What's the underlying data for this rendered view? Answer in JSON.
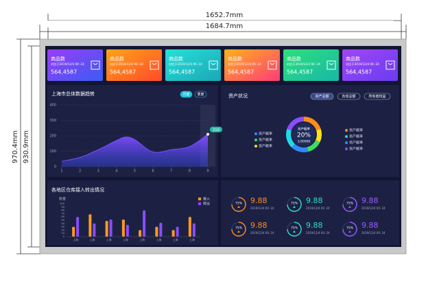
{
  "dimensions": {
    "width_inner": "1652.7mm",
    "width_outer": "1684.7mm",
    "height_outer": "970.4mm",
    "height_inner": "930.9mm"
  },
  "cards": [
    {
      "title": "商品数",
      "subtitle": "对比于2019/12/4 00: 24",
      "value": "564,4587"
    },
    {
      "title": "商品数",
      "subtitle": "对比于2019/12/4 00: 24",
      "value": "564,4587"
    },
    {
      "title": "商品数",
      "subtitle": "对比于2019/12/4 00: 24",
      "value": "564,4587"
    },
    {
      "title": "商品数",
      "subtitle": "对比于2019/12/4 00: 24",
      "value": "564,4587"
    },
    {
      "title": "商品数",
      "subtitle": "对比于2019/12/4 00: 24",
      "value": "564,4587"
    },
    {
      "title": "商品数",
      "subtitle": "对比于2019/12/4 00: 24",
      "value": "564,4587"
    }
  ],
  "chart_data": [
    {
      "type": "area",
      "title": "上海市总体数据趋势",
      "buttons": [
        "月度",
        "季度"
      ],
      "x": [
        1,
        2,
        3,
        4,
        4.5,
        5,
        6,
        7,
        8,
        9
      ],
      "values": [
        35,
        60,
        110,
        170,
        192,
        175,
        95,
        110,
        130,
        210
      ],
      "color": "#7b4dff",
      "xlim": [
        1,
        9
      ],
      "xticks": [
        1,
        2,
        3,
        4,
        5,
        6,
        7,
        8,
        9
      ],
      "ylim": [
        0,
        400
      ],
      "yticks": [
        0,
        100,
        200,
        300,
        400
      ],
      "grid": true
    },
    {
      "type": "donut",
      "title": "资产状况",
      "buttons": [
        "资产总额",
        "负债总额",
        "所有者权益"
      ],
      "center_title": "资产概率",
      "center_value": "20%",
      "center_sub": "3,00000",
      "values": [
        20,
        12,
        14,
        16,
        18,
        20
      ],
      "colors": [
        "#ff8c1a",
        "#ffe11a",
        "#3ddc5f",
        "#2f8cff",
        "#22d8e6",
        "#8a4dff"
      ],
      "legend_left": [
        {
          "name": "资产概率",
          "color": "#2f8cff"
        },
        {
          "name": "资产概率",
          "color": "#3ddc5f"
        },
        {
          "name": "资产概率",
          "color": "#ffe11a"
        }
      ],
      "legend_right": [
        {
          "name": "资产概率",
          "color": "#ff8c1a"
        },
        {
          "name": "资产概率",
          "color": "#22d8e6"
        },
        {
          "name": "资产概率",
          "color": "#2f8cff"
        },
        {
          "name": "资产概率",
          "color": "#8a4dff"
        }
      ]
    },
    {
      "type": "grouped_bar",
      "title": "各地区仓库接入转出情况",
      "y_label": "数量",
      "categories": [
        "上海",
        "上海",
        "上海",
        "上海",
        "上海",
        "上海",
        "上海",
        "上海"
      ],
      "series": [
        {
          "name": "接入",
          "color": "#ff9a1f",
          "values": [
            30,
            68,
            48,
            52,
            20,
            30,
            20,
            60
          ]
        },
        {
          "name": "转出",
          "color": "#8a4dff",
          "values": [
            60,
            40,
            52,
            36,
            80,
            42,
            30,
            40
          ]
        }
      ],
      "ylim": [
        0,
        100
      ],
      "yticks": [
        0,
        10,
        20,
        30,
        40,
        50,
        60,
        70,
        80,
        90,
        100
      ],
      "legend": "upper right"
    }
  ],
  "kpis": [
    {
      "percent": 75,
      "percent_label": "75%",
      "value": "9.88",
      "subtitle": "2019/12/4 00: 24",
      "color": "#ff8c1a"
    },
    {
      "percent": 75,
      "percent_label": "75%",
      "value": "9.88",
      "subtitle": "2019/12/4 00: 24",
      "color": "#2de0c0"
    },
    {
      "percent": 75,
      "percent_label": "75%",
      "value": "9.88",
      "subtitle": "2019/12/4 00: 24",
      "color": "#9a5cff"
    },
    {
      "percent": 75,
      "percent_label": "75%",
      "value": "9.88",
      "subtitle": "2019/12/4 00: 24",
      "color": "#ff8c1a"
    },
    {
      "percent": 75,
      "percent_label": "75%",
      "value": "9.88",
      "subtitle": "2019/12/4 00: 24",
      "color": "#2de0c0"
    },
    {
      "percent": 75,
      "percent_label": "75%",
      "value": "9.88",
      "subtitle": "2019/12/4 00: 24",
      "color": "#9a5cff"
    }
  ]
}
